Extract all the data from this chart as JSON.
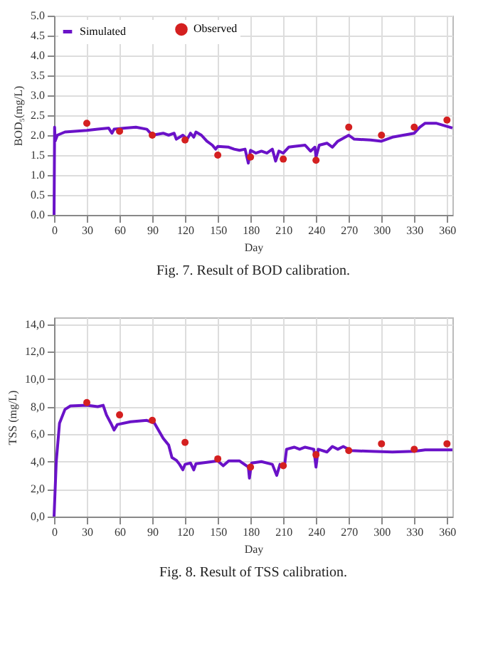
{
  "chart_data": [
    {
      "type": "line",
      "xlabel": "Day",
      "ylabel": "BOD₅(mg/L)",
      "annotations": [
        "Fig. 7. Result of BOD calibration."
      ],
      "xlim": [
        0,
        365
      ],
      "xticks": [
        0,
        30,
        60,
        90,
        120,
        150,
        180,
        210,
        240,
        270,
        300,
        330,
        360
      ],
      "ylim": [
        0,
        5
      ],
      "yticks": [
        {
          "value": 0,
          "label": "0.0"
        },
        0.5,
        {
          "value": 1,
          "label": "1.0"
        },
        1.5,
        {
          "value": 2,
          "label": "2.0"
        },
        2.5,
        {
          "value": 3,
          "label": "3.0"
        },
        3.5,
        {
          "value": 4,
          "label": "4.0"
        },
        4.5,
        {
          "value": 5,
          "label": "5.0"
        }
      ],
      "grid": true,
      "legend": "top left",
      "series": [
        {
          "name": "Simulated",
          "type": "line",
          "color": "#6a12c8",
          "marker": "none",
          "x": [
            0,
            0.5,
            1,
            3,
            10,
            30,
            40,
            50,
            53,
            55,
            65,
            75,
            85,
            90,
            100,
            105,
            110,
            112,
            118,
            122,
            125,
            128,
            130,
            135,
            140,
            145,
            148,
            150,
            160,
            165,
            170,
            175,
            178,
            180,
            185,
            190,
            195,
            200,
            203,
            206,
            210,
            215,
            220,
            230,
            235,
            239,
            240,
            243,
            250,
            255,
            260,
            270,
            275,
            290,
            300,
            310,
            320,
            330,
            335,
            340,
            350,
            365
          ],
          "values": [
            0,
            2.2,
            1.85,
            2.0,
            2.08,
            2.12,
            2.15,
            2.18,
            2.05,
            2.15,
            2.18,
            2.2,
            2.15,
            2.0,
            2.05,
            2.0,
            2.05,
            1.9,
            2.0,
            1.9,
            2.05,
            1.95,
            2.08,
            2.0,
            1.85,
            1.75,
            1.65,
            1.72,
            1.7,
            1.65,
            1.62,
            1.65,
            1.3,
            1.62,
            1.55,
            1.6,
            1.55,
            1.65,
            1.35,
            1.6,
            1.55,
            1.7,
            1.72,
            1.75,
            1.6,
            1.7,
            1.45,
            1.75,
            1.8,
            1.7,
            1.85,
            2.0,
            1.9,
            1.88,
            1.85,
            1.95,
            2.0,
            2.05,
            2.2,
            2.3,
            2.3,
            2.18
          ]
        },
        {
          "name": "Observed",
          "type": "scatter",
          "color": "#d42020",
          "marker": "circle",
          "x": [
            30,
            60,
            90,
            120,
            150,
            180,
            210,
            240,
            270,
            300,
            330,
            360
          ],
          "values": [
            2.3,
            2.1,
            2.0,
            1.88,
            1.5,
            1.45,
            1.4,
            1.37,
            2.2,
            2.0,
            2.2,
            2.38
          ]
        }
      ]
    },
    {
      "type": "line",
      "xlabel": "Day",
      "ylabel": "TSS (mg/L)",
      "annotations": [
        "Fig. 8. Result of TSS calibration."
      ],
      "xlim": [
        0,
        365
      ],
      "xticks": [
        0,
        30,
        60,
        90,
        120,
        150,
        180,
        210,
        240,
        270,
        300,
        330,
        360
      ],
      "ylim": [
        0,
        14.5
      ],
      "yticks": [
        {
          "value": 0,
          "label": "0,0"
        },
        {
          "value": 2,
          "label": "2,0"
        },
        {
          "value": 4,
          "label": "4,0"
        },
        {
          "value": 6,
          "label": "6,0"
        },
        {
          "value": 8,
          "label": "8,0"
        },
        {
          "value": 10,
          "label": "10,0"
        },
        {
          "value": 12,
          "label": "12,0"
        },
        {
          "value": 14,
          "label": "14,0"
        }
      ],
      "grid": true,
      "legend": "top left",
      "series": [
        {
          "name": "Simulated",
          "type": "line",
          "color": "#6a12c8",
          "marker": "none",
          "x": [
            0,
            2,
            5,
            10,
            15,
            30,
            40,
            45,
            48,
            52,
            55,
            58,
            70,
            85,
            92,
            100,
            105,
            108,
            112,
            115,
            118,
            120,
            125,
            128,
            130,
            140,
            150,
            155,
            160,
            170,
            178,
            179,
            181,
            190,
            200,
            204,
            207,
            211,
            213,
            220,
            225,
            230,
            238,
            240,
            242,
            250,
            255,
            260,
            265,
            272,
            290,
            310,
            330,
            340,
            365
          ],
          "values": [
            0,
            4,
            6.8,
            7.8,
            8.05,
            8.1,
            8.0,
            8.1,
            7.4,
            6.8,
            6.3,
            6.7,
            6.9,
            7.0,
            6.8,
            5.7,
            5.2,
            4.3,
            4.1,
            3.8,
            3.4,
            3.8,
            3.9,
            3.4,
            3.85,
            3.95,
            4.05,
            3.7,
            4.05,
            4.05,
            3.6,
            2.8,
            3.9,
            4.0,
            3.8,
            3.0,
            3.8,
            3.6,
            4.9,
            5.05,
            4.9,
            5.05,
            4.9,
            3.6,
            4.9,
            4.7,
            5.1,
            4.9,
            5.1,
            4.8,
            4.75,
            4.7,
            4.75,
            4.85,
            4.85
          ]
        },
        {
          "name": "Observed",
          "type": "scatter",
          "color": "#d42020",
          "marker": "circle",
          "x": [
            30,
            60,
            90,
            120,
            150,
            180,
            210,
            240,
            270,
            300,
            330,
            360
          ],
          "values": [
            8.3,
            7.4,
            7.0,
            5.4,
            4.2,
            3.6,
            3.7,
            4.5,
            4.8,
            5.3,
            4.9,
            5.3
          ]
        }
      ]
    }
  ]
}
